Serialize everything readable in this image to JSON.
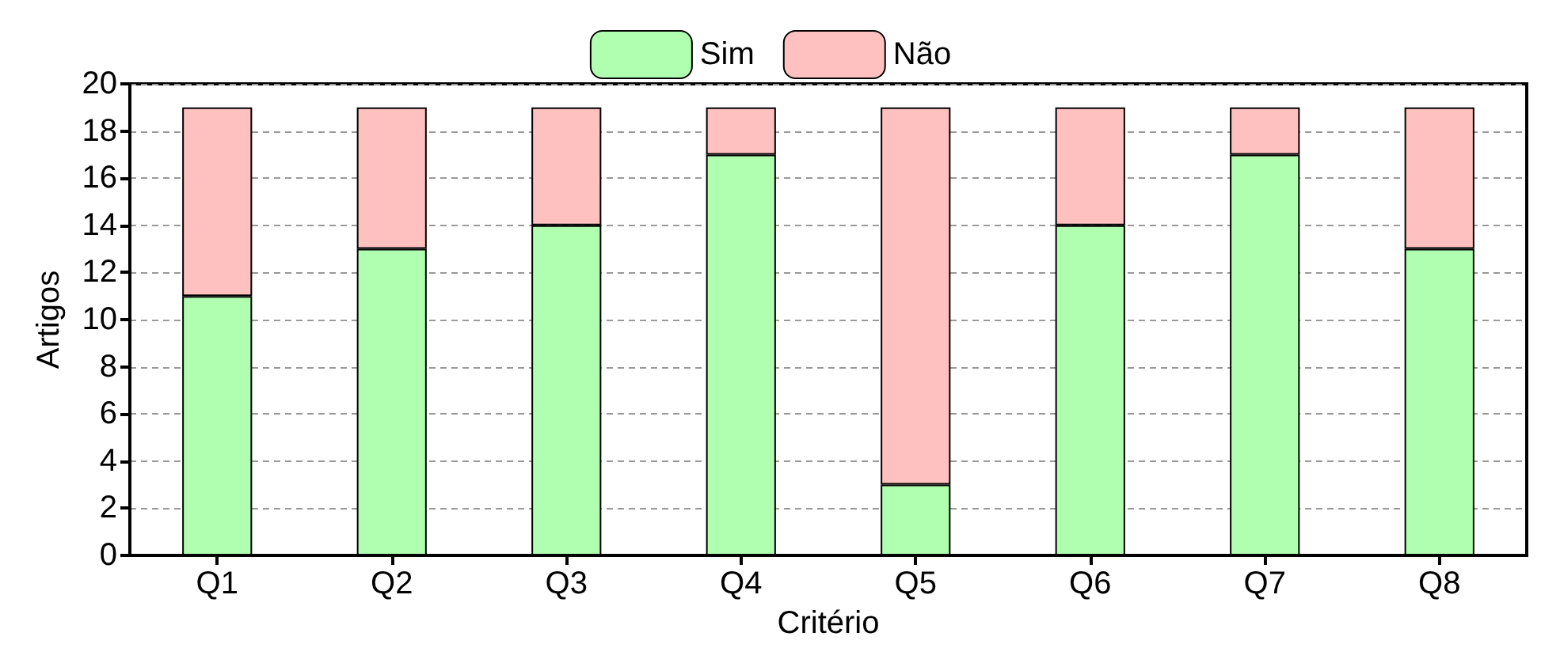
{
  "chart_data": {
    "type": "bar",
    "stacked": true,
    "xlabel": "Critério",
    "ylabel": "Artigos",
    "categories": [
      "Q1",
      "Q2",
      "Q3",
      "Q4",
      "Q5",
      "Q6",
      "Q7",
      "Q8"
    ],
    "series": [
      {
        "name": "Sim",
        "color": "#b0ffb0",
        "values": [
          11,
          13,
          14,
          17,
          3,
          14,
          17,
          13
        ]
      },
      {
        "name": "Não",
        "color": "#ffc0c0",
        "values": [
          8,
          6,
          5,
          2,
          16,
          5,
          2,
          6
        ]
      }
    ],
    "ylim": [
      0,
      20
    ],
    "yticks": [
      0,
      2,
      4,
      6,
      8,
      10,
      12,
      14,
      16,
      18,
      20
    ],
    "grid": "y",
    "legend": "top"
  }
}
